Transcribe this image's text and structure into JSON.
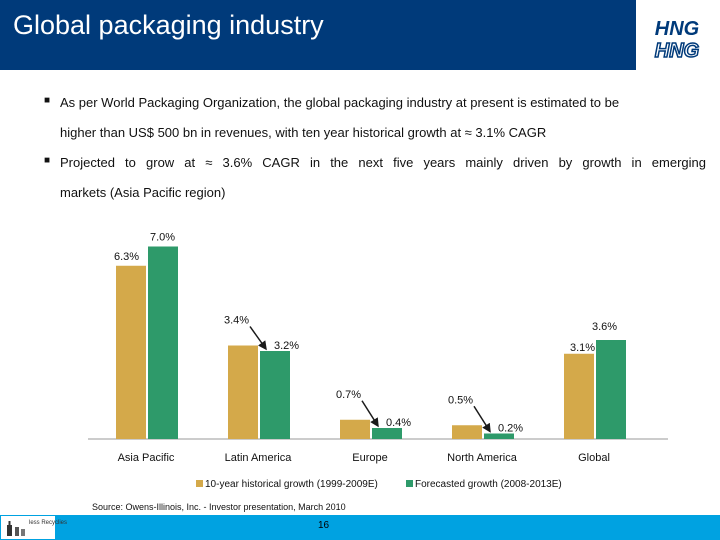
{
  "header": {
    "title": "Global packaging industry",
    "logo_text_top": "HNG",
    "logo_text_bottom": "HNG"
  },
  "bullets": [
    {
      "line1": "As per World Packaging Organization, the global packaging industry at present is estimated to be",
      "line2": "higher than US$ 500 bn in revenues, with ten year historical growth at ≈ 3.1% CAGR"
    },
    {
      "line1": "Projected to grow at ≈ 3.6% CAGR in the next five years mainly driven by growth in emerging",
      "line2": "markets (Asia Pacific region)"
    }
  ],
  "chart_data": {
    "type": "bar",
    "title": "",
    "xlabel": "",
    "ylabel": "",
    "ylim": [
      0,
      8
    ],
    "grid": false,
    "legend_position": "bottom",
    "categories": [
      "Asia Pacific",
      "Latin America",
      "Europe",
      "North America",
      "Global"
    ],
    "series": [
      {
        "name": "10-year historical growth (1999-2009E)",
        "color": "#d4a94a",
        "values": [
          6.3,
          3.4,
          0.7,
          0.5,
          3.1
        ],
        "labels": [
          "6.3%",
          "3.4%",
          "0.7%",
          "0.5%",
          "3.1%"
        ]
      },
      {
        "name": "Forecasted growth (2008-2013E)",
        "color": "#2e9a6a",
        "values": [
          7.0,
          3.2,
          0.4,
          0.2,
          3.6
        ],
        "labels": [
          "7.0%",
          "3.2%",
          "0.4%",
          "0.2%",
          "3.6%"
        ]
      }
    ]
  },
  "source": "Source: Owens-Illinois, Inc. - Investor presentation, March 2010",
  "footer": {
    "logo_text": "less Recyclies",
    "page_number": "16"
  },
  "colors": {
    "header_bg": "#003a7a",
    "footer_bg": "#00a2e1",
    "arrow": "#1a1a1a"
  }
}
